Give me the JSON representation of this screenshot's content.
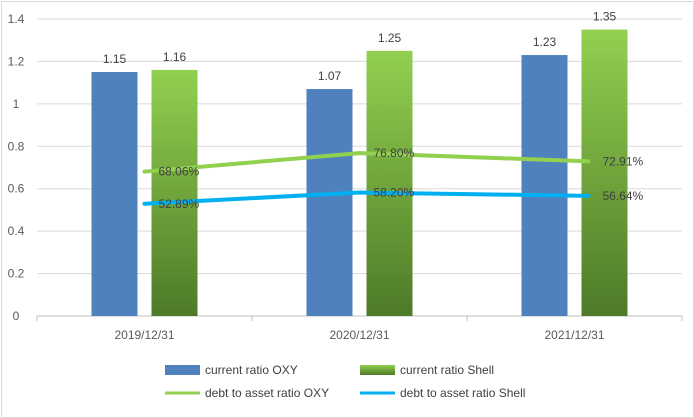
{
  "chart_data": {
    "type": "bar",
    "categories": [
      "2019/12/31",
      "2020/12/31",
      "2021/12/31"
    ],
    "series": [
      {
        "name": "current ratio OXY",
        "kind": "bar",
        "values": [
          1.15,
          1.07,
          1.23
        ],
        "labels": [
          "1.15",
          "1.07",
          "1.23"
        ],
        "color": "#4f81bd"
      },
      {
        "name": "current ratio Shell",
        "kind": "bar",
        "values": [
          1.16,
          1.25,
          1.35
        ],
        "labels": [
          "1.16",
          "1.25",
          "1.35"
        ],
        "color_top": "#92d050",
        "color_bottom": "#4e7a28"
      },
      {
        "name": "debt to asset ratio OXY",
        "kind": "line",
        "values": [
          0.6806,
          0.768,
          0.7291
        ],
        "labels": [
          "68.06%",
          "76.80%",
          "72.91%"
        ],
        "color": "#92d050"
      },
      {
        "name": "debt to asset ratio Shell",
        "kind": "line",
        "values": [
          0.5289,
          0.582,
          0.5664
        ],
        "labels": [
          "52.89%",
          "58.20%",
          "56.64%"
        ],
        "color": "#00b0f0"
      }
    ],
    "ylim": [
      0,
      1.4
    ],
    "yticks": [
      "0",
      "0.2",
      "0.4",
      "0.6",
      "0.8",
      "1",
      "1.2",
      "1.4"
    ],
    "grid": true,
    "legend_position": "bottom"
  }
}
